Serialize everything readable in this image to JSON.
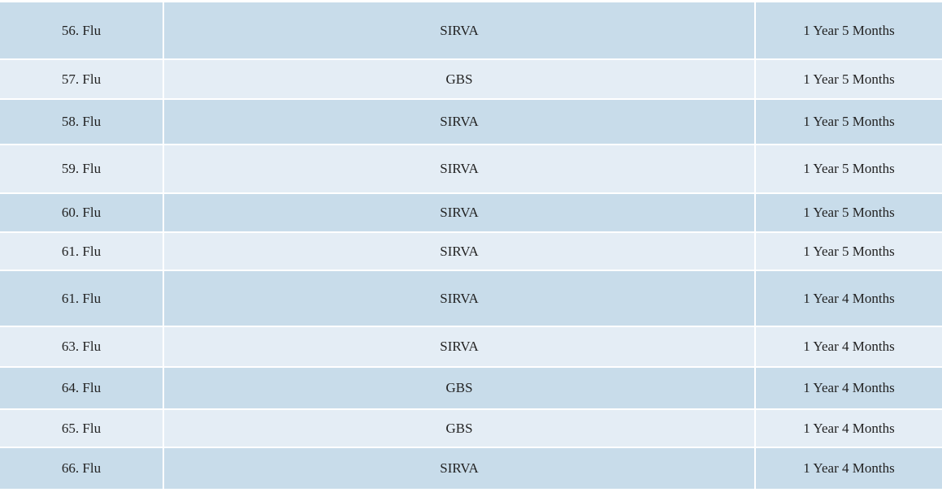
{
  "table": {
    "rows": [
      [
        "56. Flu",
        "SIRVA",
        "1 Year 5 Months"
      ],
      [
        "57. Flu",
        "GBS",
        "1 Year 5 Months"
      ],
      [
        "58. Flu",
        "SIRVA",
        "1 Year 5 Months"
      ],
      [
        "59. Flu",
        "SIRVA",
        "1 Year 5 Months"
      ],
      [
        "60. Flu",
        "SIRVA",
        "1 Year 5 Months"
      ],
      [
        "61. Flu",
        "SIRVA",
        "1 Year 5 Months"
      ],
      [
        "61. Flu",
        "SIRVA",
        "1 Year 4 Months"
      ],
      [
        "63. Flu",
        "SIRVA",
        "1 Year 4 Months"
      ],
      [
        "64. Flu",
        "GBS",
        "1 Year 4 Months"
      ],
      [
        "65. Flu",
        "GBS",
        "1 Year 4 Months"
      ],
      [
        "66. Flu",
        "SIRVA",
        "1 Year 4 Months"
      ]
    ]
  }
}
